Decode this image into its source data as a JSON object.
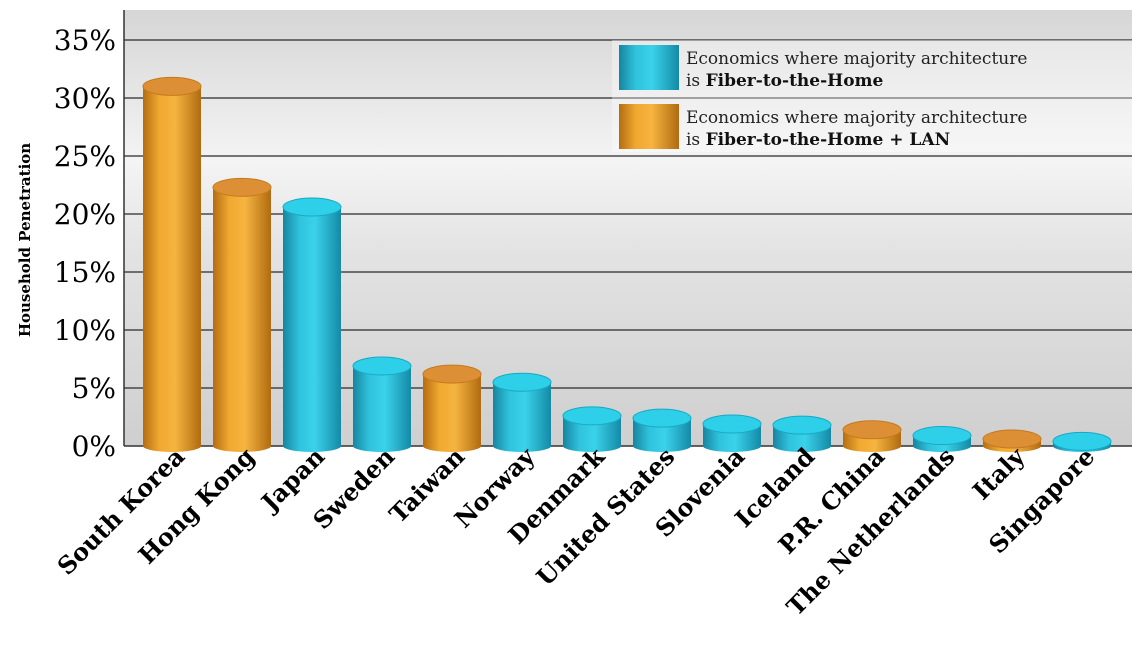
{
  "chart_data": {
    "type": "bar",
    "ylabel": "Household Penetration",
    "ylim": [
      0,
      35
    ],
    "yticks": [
      "0%",
      "5%",
      "10%",
      "15%",
      "20%",
      "25%",
      "30%",
      "35%"
    ],
    "grid": true,
    "legend_position": "top-right",
    "categories": [
      "South Korea",
      "Hong Kong",
      "Japan",
      "Sweden",
      "Taiwan",
      "Norway",
      "Denmark",
      "United States",
      "Slovenia",
      "Iceland",
      "P.R. China",
      "The Netherlands",
      "Italy",
      "Singapore"
    ],
    "values": [
      31,
      22.3,
      20.6,
      6.9,
      6.2,
      5.5,
      2.6,
      2.4,
      1.9,
      1.8,
      1.4,
      0.9,
      0.6,
      0.4
    ],
    "groups": [
      "lan",
      "lan",
      "ftth",
      "ftth",
      "lan",
      "ftth",
      "ftth",
      "ftth",
      "ftth",
      "ftth",
      "lan",
      "ftth",
      "lan",
      "ftth"
    ],
    "series": [
      {
        "key": "ftth",
        "legend_line1": "Economics where majority architecture",
        "legend_prefix": "is ",
        "legend_bold": "Fiber-to-the-Home",
        "color": "#1fb8d3"
      },
      {
        "key": "lan",
        "legend_line1": "Economics where majority architecture",
        "legend_prefix": "is ",
        "legend_bold": "Fiber-to-the-Home + LAN",
        "color": "#e79a1c"
      }
    ]
  }
}
